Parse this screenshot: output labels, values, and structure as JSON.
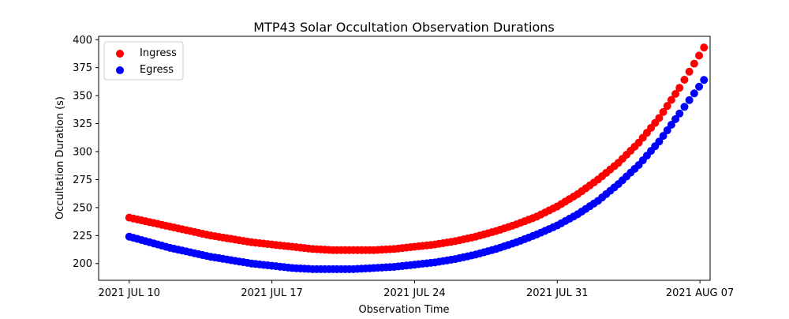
{
  "chart_data": {
    "type": "scatter",
    "title": "MTP43 Solar Occultation Observation Durations",
    "xlabel": "Observation Time",
    "ylabel": "Occultation Duration (s)",
    "x_unit": "days since 2021 JUL 10",
    "xlim": [
      -1.5,
      28.5
    ],
    "ylim": [
      185,
      403
    ],
    "x_ticks": [
      {
        "value": 0,
        "label": "2021 JUL 10"
      },
      {
        "value": 7,
        "label": "2021 JUL 17"
      },
      {
        "value": 14,
        "label": "2021 JUL 24"
      },
      {
        "value": 21,
        "label": "2021 JUL 31"
      },
      {
        "value": 28,
        "label": "2021 AUG 07"
      }
    ],
    "y_ticks": [
      200,
      225,
      250,
      275,
      300,
      325,
      350,
      375,
      400
    ],
    "grid": false,
    "legend_position": "top-left",
    "x": [
      0,
      1,
      2,
      3,
      4,
      5,
      6,
      7,
      8,
      9,
      10,
      11,
      12,
      13,
      14,
      15,
      16,
      17,
      18,
      19,
      20,
      21,
      22,
      23,
      24,
      25,
      26,
      27,
      28.2
    ],
    "series": [
      {
        "name": "Ingress",
        "color": "#ff0000",
        "values": [
          241,
          237,
          233,
          229,
          225,
          222,
          219,
          217,
          215,
          213,
          212,
          212,
          212,
          213,
          215,
          217,
          220,
          224,
          229,
          235,
          242,
          251,
          262,
          275,
          290,
          308,
          330,
          357,
          393
        ]
      },
      {
        "name": "Egress",
        "color": "#0000ff",
        "values": [
          224,
          219,
          214,
          210,
          206,
          203,
          200,
          198,
          196,
          195,
          195,
          195,
          196,
          197,
          199,
          201,
          204,
          208,
          213,
          219,
          226,
          234,
          244,
          256,
          271,
          288,
          309,
          334,
          364
        ]
      }
    ]
  }
}
